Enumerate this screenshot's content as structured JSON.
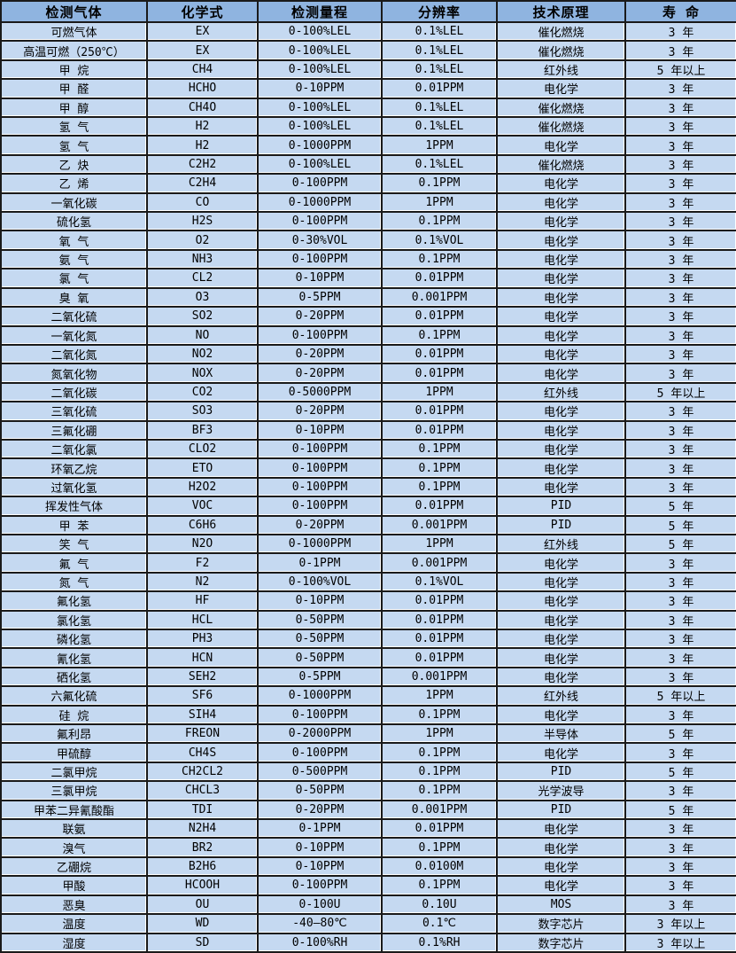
{
  "colors": {
    "header_bg": "#8FB4E0",
    "row_bg": "#C5D9F1",
    "border": "#1A1A1A",
    "text": "#000000"
  },
  "table": {
    "headers": [
      "检测气体",
      "化学式",
      "检测量程",
      "分辨率",
      "技术原理",
      "寿 命"
    ],
    "column_names": [
      "gas-name",
      "chemical-formula",
      "detection-range",
      "resolution",
      "principle",
      "lifespan"
    ],
    "rows": [
      [
        "可燃气体",
        "EX",
        "0-100%LEL",
        "0.1%LEL",
        "催化燃烧",
        "3 年"
      ],
      [
        "高温可燃（250℃）",
        "EX",
        "0-100%LEL",
        "0.1%LEL",
        "催化燃烧",
        "3 年"
      ],
      [
        "甲 烷",
        "CH4",
        "0-100%LEL",
        "0.1%LEL",
        "红外线",
        "5 年以上"
      ],
      [
        "甲 醛",
        "HCHO",
        "0-10PPM",
        "0.01PPM",
        "电化学",
        "3 年"
      ],
      [
        "甲 醇",
        "CH4O",
        "0-100%LEL",
        "0.1%LEL",
        "催化燃烧",
        "3 年"
      ],
      [
        "氢 气",
        "H2",
        "0-100%LEL",
        "0.1%LEL",
        "催化燃烧",
        "3 年"
      ],
      [
        "氢 气",
        "H2",
        "0-1000PPM",
        "1PPM",
        "电化学",
        "3 年"
      ],
      [
        "乙 炔",
        "C2H2",
        "0-100%LEL",
        "0.1%LEL",
        "催化燃烧",
        "3 年"
      ],
      [
        "乙 烯",
        "C2H4",
        "0-100PPM",
        "0.1PPM",
        "电化学",
        "3 年"
      ],
      [
        "一氧化碳",
        "CO",
        "0-1000PPM",
        "1PPM",
        "电化学",
        "3 年"
      ],
      [
        "硫化氢",
        "H2S",
        "0-100PPM",
        "0.1PPM",
        "电化学",
        "3 年"
      ],
      [
        "氧 气",
        "O2",
        "0-30%VOL",
        "0.1%VOL",
        "电化学",
        "3 年"
      ],
      [
        "氨 气",
        "NH3",
        "0-100PPM",
        "0.1PPM",
        "电化学",
        "3 年"
      ],
      [
        "氯 气",
        "CL2",
        "0-10PPM",
        "0.01PPM",
        "电化学",
        "3 年"
      ],
      [
        "臭 氧",
        "O3",
        "0-5PPM",
        "0.001PPM",
        "电化学",
        "3 年"
      ],
      [
        "二氧化硫",
        "SO2",
        "0-20PPM",
        "0.01PPM",
        "电化学",
        "3 年"
      ],
      [
        "一氧化氮",
        "NO",
        "0-100PPM",
        "0.1PPM",
        "电化学",
        "3 年"
      ],
      [
        "二氧化氮",
        "NO2",
        "0-20PPM",
        "0.01PPM",
        "电化学",
        "3 年"
      ],
      [
        "氮氧化物",
        "NOX",
        "0-20PPM",
        "0.01PPM",
        "电化学",
        "3 年"
      ],
      [
        "二氧化碳",
        "CO2",
        "0-5000PPM",
        "1PPM",
        "红外线",
        "5 年以上"
      ],
      [
        "三氧化硫",
        "SO3",
        "0-20PPM",
        "0.01PPM",
        "电化学",
        "3 年"
      ],
      [
        "三氟化硼",
        "BF3",
        "0-10PPM",
        "0.01PPM",
        "电化学",
        "3 年"
      ],
      [
        "二氧化氯",
        "CLO2",
        "0-100PPM",
        "0.1PPM",
        "电化学",
        "3 年"
      ],
      [
        "环氧乙烷",
        "ETO",
        "0-100PPM",
        "0.1PPM",
        "电化学",
        "3 年"
      ],
      [
        "过氧化氢",
        "H2O2",
        "0-100PPM",
        "0.1PPM",
        "电化学",
        "3 年"
      ],
      [
        "挥发性气体",
        "VOC",
        "0-100PPM",
        "0.01PPM",
        "PID",
        "5 年"
      ],
      [
        "甲 苯",
        "C6H6",
        "0-20PPM",
        "0.001PPM",
        "PID",
        "5 年"
      ],
      [
        "笑 气",
        "N2O",
        "0-1000PPM",
        "1PPM",
        "红外线",
        "5 年"
      ],
      [
        "氟 气",
        "F2",
        "0-1PPM",
        "0.001PPM",
        "电化学",
        "3 年"
      ],
      [
        "氮 气",
        "N2",
        "0-100%VOL",
        "0.1%VOL",
        "电化学",
        "3 年"
      ],
      [
        "氟化氢",
        "HF",
        "0-10PPM",
        "0.01PPM",
        "电化学",
        "3 年"
      ],
      [
        "氯化氢",
        "HCL",
        "0-50PPM",
        "0.01PPM",
        "电化学",
        "3 年"
      ],
      [
        "磷化氢",
        "PH3",
        "0-50PPM",
        "0.01PPM",
        "电化学",
        "3 年"
      ],
      [
        "氰化氢",
        "HCN",
        "0-50PPM",
        "0.01PPM",
        "电化学",
        "3 年"
      ],
      [
        "硒化氢",
        "SEH2",
        "0-5PPM",
        "0.001PPM",
        "电化学",
        "3 年"
      ],
      [
        "六氟化硫",
        "SF6",
        "0-1000PPM",
        "1PPM",
        "红外线",
        "5 年以上"
      ],
      [
        "硅 烷",
        "SIH4",
        "0-100PPM",
        "0.1PPM",
        "电化学",
        "3 年"
      ],
      [
        "氟利昂",
        "FREON",
        "0-2000PPM",
        "1PPM",
        "半导体",
        "5 年"
      ],
      [
        "甲硫醇",
        "CH4S",
        "0-100PPM",
        "0.1PPM",
        "电化学",
        "3 年"
      ],
      [
        "二氯甲烷",
        "CH2CL2",
        "0-500PPM",
        "0.1PPM",
        "PID",
        "5 年"
      ],
      [
        "三氯甲烷",
        "CHCL3",
        "0-50PPM",
        "0.1PPM",
        "光学波导",
        "3 年"
      ],
      [
        "甲苯二异氰酸酯",
        "TDI",
        "0-20PPM",
        "0.001PPM",
        "PID",
        "5 年"
      ],
      [
        "联氨",
        "N2H4",
        "0-1PPM",
        "0.01PPM",
        "电化学",
        "3 年"
      ],
      [
        "溴气",
        "BR2",
        "0-10PPM",
        "0.1PPM",
        "电化学",
        "3 年"
      ],
      [
        "乙硼烷",
        "B2H6",
        "0-10PPM",
        "0.0100M",
        "电化学",
        "3 年"
      ],
      [
        "甲酸",
        "HCOOH",
        "0-100PPM",
        "0.1PPM",
        "电化学",
        "3 年"
      ],
      [
        "恶臭",
        "OU",
        "0-100U",
        "0.10U",
        "MOS",
        "3 年"
      ],
      [
        "温度",
        "WD",
        "-40—80℃",
        "0.1℃",
        "数字芯片",
        "3 年以上"
      ],
      [
        "湿度",
        "SD",
        "0-100%RH",
        "0.1%RH",
        "数字芯片",
        "3 年以上"
      ]
    ]
  }
}
